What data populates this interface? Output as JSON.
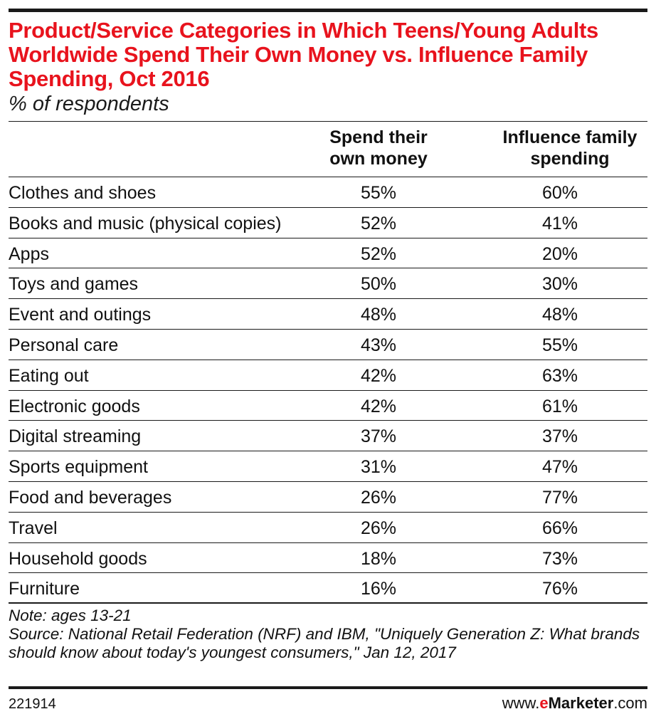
{
  "title": "Product/Service Categories in Which Teens/Young Adults Worldwide Spend Their Own Money vs. Influence Family Spending, Oct 2016",
  "subtitle": "% of respondents",
  "columns": [
    "Spend their\nown money",
    "Influence family\nspending"
  ],
  "chart_data": {
    "type": "table",
    "title": "Product/Service Categories in Which Teens/Young Adults Worldwide Spend Their Own Money vs. Influence Family Spending, Oct 2016",
    "subtitle": "% of respondents",
    "columns": [
      "Spend their own money",
      "Influence family spending"
    ],
    "rows": [
      {
        "category": "Clothes and shoes",
        "spend": "55%",
        "influence": "60%"
      },
      {
        "category": "Books and music (physical copies)",
        "spend": "52%",
        "influence": "41%"
      },
      {
        "category": "Apps",
        "spend": "52%",
        "influence": "20%"
      },
      {
        "category": "Toys and games",
        "spend": "50%",
        "influence": "30%"
      },
      {
        "category": "Event and outings",
        "spend": "48%",
        "influence": "48%"
      },
      {
        "category": "Personal care",
        "spend": "43%",
        "influence": "55%"
      },
      {
        "category": "Eating out",
        "spend": "42%",
        "influence": "63%"
      },
      {
        "category": "Electronic goods",
        "spend": "42%",
        "influence": "61%"
      },
      {
        "category": "Digital streaming",
        "spend": "37%",
        "influence": "37%"
      },
      {
        "category": "Sports equipment",
        "spend": "31%",
        "influence": "47%"
      },
      {
        "category": "Food and beverages",
        "spend": "26%",
        "influence": "77%"
      },
      {
        "category": "Travel",
        "spend": "26%",
        "influence": "66%"
      },
      {
        "category": "Household goods",
        "spend": "18%",
        "influence": "73%"
      },
      {
        "category": "Furniture",
        "spend": "16%",
        "influence": "76%"
      }
    ]
  },
  "notes": {
    "note": "Note: ages 13-21",
    "source": "Source: National Retail Federation (NRF) and IBM, \"Uniquely Generation Z: What brands should know about today's youngest consumers,\" Jan 12, 2017"
  },
  "footer": {
    "id": "221914",
    "brand_prefix": "www.",
    "brand_e": "e",
    "brand_name": "Marketer",
    "brand_suffix": ".com"
  },
  "colors": {
    "title": "#e8131d",
    "text": "#111111",
    "rules": "#1a1a1a"
  }
}
